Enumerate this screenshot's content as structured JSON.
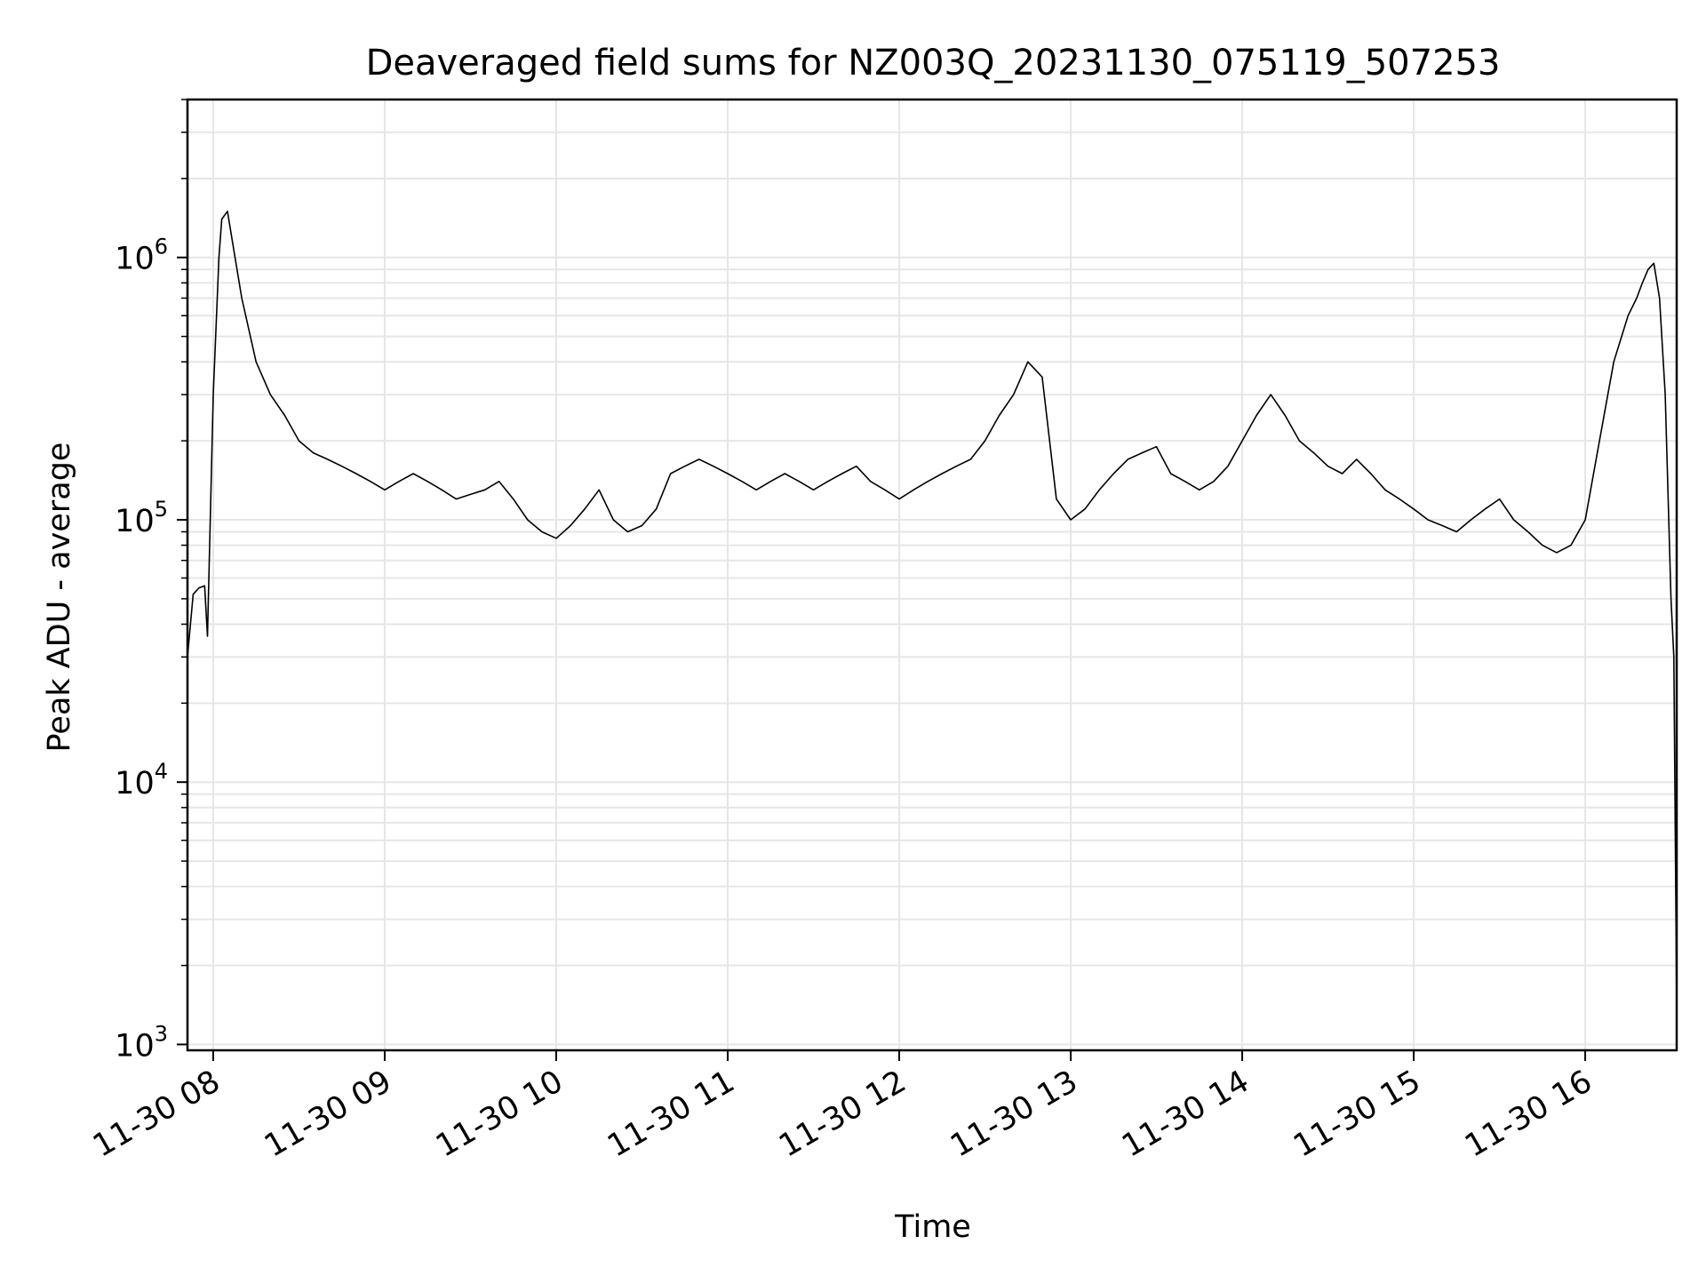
{
  "chart_data": {
    "type": "line",
    "title": "Deaveraged field sums for NZ003Q_20231130_075119_507253",
    "xlabel": "Time",
    "ylabel": "Peak ADU - average",
    "yscale": "log",
    "ylim": [
      950,
      4000000
    ],
    "xlim": [
      "2023-11-30 07:51",
      "2023-11-30 16:32"
    ],
    "grid": true,
    "line_color": "#000000",
    "grid_color": "#e6e6e6",
    "xticks": [
      {
        "x": "2023-11-30 08:00",
        "label": "11-30 08"
      },
      {
        "x": "2023-11-30 09:00",
        "label": "11-30 09"
      },
      {
        "x": "2023-11-30 10:00",
        "label": "11-30 10"
      },
      {
        "x": "2023-11-30 11:00",
        "label": "11-30 11"
      },
      {
        "x": "2023-11-30 12:00",
        "label": "11-30 12"
      },
      {
        "x": "2023-11-30 13:00",
        "label": "11-30 13"
      },
      {
        "x": "2023-11-30 14:00",
        "label": "11-30 14"
      },
      {
        "x": "2023-11-30 15:00",
        "label": "11-30 15"
      },
      {
        "x": "2023-11-30 16:00",
        "label": "11-30 16"
      }
    ],
    "yticks": [
      {
        "y": 1000,
        "base": "10",
        "exp": "3"
      },
      {
        "y": 10000,
        "base": "10",
        "exp": "4"
      },
      {
        "y": 100000,
        "base": "10",
        "exp": "5"
      },
      {
        "y": 1000000,
        "base": "10",
        "exp": "6"
      }
    ],
    "series": [
      {
        "x": [
          "2023-11-30 07:51",
          "2023-11-30 07:53",
          "2023-11-30 07:55",
          "2023-11-30 07:57",
          "2023-11-30 07:58",
          "2023-11-30 08:00",
          "2023-11-30 08:02",
          "2023-11-30 08:03",
          "2023-11-30 08:05",
          "2023-11-30 08:07",
          "2023-11-30 08:10",
          "2023-11-30 08:15",
          "2023-11-30 08:20",
          "2023-11-30 08:25",
          "2023-11-30 08:30",
          "2023-11-30 08:35",
          "2023-11-30 08:40",
          "2023-11-30 08:45",
          "2023-11-30 08:50",
          "2023-11-30 08:55",
          "2023-11-30 09:00",
          "2023-11-30 09:05",
          "2023-11-30 09:10",
          "2023-11-30 09:15",
          "2023-11-30 09:20",
          "2023-11-30 09:25",
          "2023-11-30 09:30",
          "2023-11-30 09:35",
          "2023-11-30 09:40",
          "2023-11-30 09:45",
          "2023-11-30 09:50",
          "2023-11-30 09:55",
          "2023-11-30 10:00",
          "2023-11-30 10:05",
          "2023-11-30 10:10",
          "2023-11-30 10:15",
          "2023-11-30 10:20",
          "2023-11-30 10:25",
          "2023-11-30 10:30",
          "2023-11-30 10:35",
          "2023-11-30 10:40",
          "2023-11-30 10:45",
          "2023-11-30 10:50",
          "2023-11-30 10:55",
          "2023-11-30 11:00",
          "2023-11-30 11:05",
          "2023-11-30 11:10",
          "2023-11-30 11:15",
          "2023-11-30 11:20",
          "2023-11-30 11:25",
          "2023-11-30 11:30",
          "2023-11-30 11:35",
          "2023-11-30 11:40",
          "2023-11-30 11:45",
          "2023-11-30 11:50",
          "2023-11-30 11:55",
          "2023-11-30 12:00",
          "2023-11-30 12:05",
          "2023-11-30 12:10",
          "2023-11-30 12:15",
          "2023-11-30 12:20",
          "2023-11-30 12:25",
          "2023-11-30 12:30",
          "2023-11-30 12:35",
          "2023-11-30 12:40",
          "2023-11-30 12:45",
          "2023-11-30 12:50",
          "2023-11-30 12:55",
          "2023-11-30 13:00",
          "2023-11-30 13:05",
          "2023-11-30 13:10",
          "2023-11-30 13:15",
          "2023-11-30 13:20",
          "2023-11-30 13:25",
          "2023-11-30 13:30",
          "2023-11-30 13:35",
          "2023-11-30 13:40",
          "2023-11-30 13:45",
          "2023-11-30 13:50",
          "2023-11-30 13:55",
          "2023-11-30 14:00",
          "2023-11-30 14:05",
          "2023-11-30 14:10",
          "2023-11-30 14:15",
          "2023-11-30 14:20",
          "2023-11-30 14:25",
          "2023-11-30 14:30",
          "2023-11-30 14:35",
          "2023-11-30 14:40",
          "2023-11-30 14:45",
          "2023-11-30 14:50",
          "2023-11-30 14:55",
          "2023-11-30 15:00",
          "2023-11-30 15:05",
          "2023-11-30 15:10",
          "2023-11-30 15:15",
          "2023-11-30 15:20",
          "2023-11-30 15:25",
          "2023-11-30 15:30",
          "2023-11-30 15:35",
          "2023-11-30 15:40",
          "2023-11-30 15:45",
          "2023-11-30 15:50",
          "2023-11-30 15:55",
          "2023-11-30 16:00",
          "2023-11-30 16:05",
          "2023-11-30 16:10",
          "2023-11-30 16:15",
          "2023-11-30 16:18",
          "2023-11-30 16:20",
          "2023-11-30 16:22",
          "2023-11-30 16:24",
          "2023-11-30 16:26",
          "2023-11-30 16:28",
          "2023-11-30 16:30",
          "2023-11-30 16:31",
          "2023-11-30 16:32"
        ],
        "y": [
          30000,
          52000,
          55000,
          56000,
          36000,
          300000,
          1000000,
          1400000,
          1500000,
          1100000,
          700000,
          400000,
          300000,
          250000,
          200000,
          180000,
          170000,
          160000,
          150000,
          140000,
          130000,
          140000,
          150000,
          140000,
          130000,
          120000,
          125000,
          130000,
          140000,
          120000,
          100000,
          90000,
          85000,
          95000,
          110000,
          130000,
          100000,
          90000,
          95000,
          110000,
          150000,
          160000,
          170000,
          160000,
          150000,
          140000,
          130000,
          140000,
          150000,
          140000,
          130000,
          140000,
          150000,
          160000,
          140000,
          130000,
          120000,
          130000,
          140000,
          150000,
          160000,
          170000,
          200000,
          250000,
          300000,
          400000,
          350000,
          120000,
          100000,
          110000,
          130000,
          150000,
          170000,
          180000,
          190000,
          150000,
          140000,
          130000,
          140000,
          160000,
          200000,
          250000,
          300000,
          250000,
          200000,
          180000,
          160000,
          150000,
          170000,
          150000,
          130000,
          120000,
          110000,
          100000,
          95000,
          90000,
          100000,
          110000,
          120000,
          100000,
          90000,
          80000,
          75000,
          80000,
          100000,
          200000,
          400000,
          600000,
          700000,
          800000,
          900000,
          950000,
          700000,
          300000,
          50000,
          30000,
          1400
        ]
      }
    ]
  }
}
